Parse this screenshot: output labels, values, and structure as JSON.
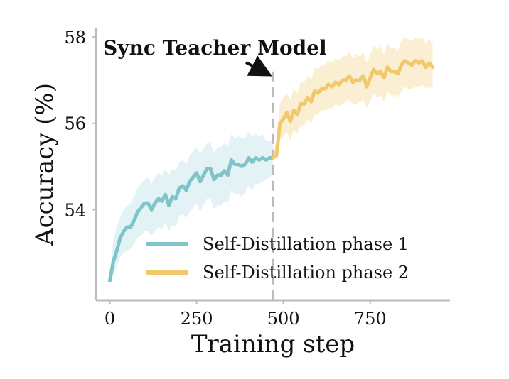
{
  "chart_data": {
    "type": "line",
    "title": "",
    "xlabel": "Training step",
    "ylabel": "Accuracy (%)",
    "xlim": [
      -40,
      980
    ],
    "ylim": [
      51.9,
      58.2
    ],
    "xticks": [
      0,
      250,
      500,
      750
    ],
    "yticks": [
      54,
      56,
      58
    ],
    "grid": false,
    "legend_position": "lower-right",
    "annotation": {
      "text": "Sync Teacher Model",
      "arrow_to": [
        470,
        57.2
      ]
    },
    "sync_line_x": 470,
    "colors": {
      "phase1": "#7fc4cb",
      "phase2": "#f0c96a",
      "sync_line": "#bbbbbb",
      "axis": "#bbbbbb"
    },
    "series": [
      {
        "name": "Self-Distillation phase 1",
        "x": [
          0,
          10,
          20,
          30,
          40,
          50,
          60,
          70,
          80,
          90,
          100,
          110,
          120,
          130,
          140,
          150,
          160,
          170,
          180,
          190,
          200,
          210,
          220,
          230,
          240,
          250,
          260,
          270,
          280,
          290,
          300,
          310,
          320,
          330,
          340,
          350,
          360,
          370,
          380,
          390,
          400,
          410,
          420,
          430,
          440,
          450,
          460,
          470
        ],
        "values": [
          52.35,
          52.8,
          53.05,
          53.35,
          53.5,
          53.6,
          53.6,
          53.75,
          53.95,
          54.05,
          54.15,
          54.15,
          54.0,
          54.15,
          54.25,
          54.2,
          54.35,
          54.1,
          54.3,
          54.25,
          54.5,
          54.55,
          54.45,
          54.65,
          54.75,
          54.85,
          54.65,
          54.8,
          54.95,
          54.95,
          54.7,
          54.8,
          54.8,
          54.9,
          54.8,
          55.15,
          55.05,
          55.05,
          55.0,
          55.05,
          55.2,
          55.1,
          55.2,
          55.15,
          55.2,
          55.15,
          55.2,
          55.2
        ],
        "lower": [
          52.3,
          52.5,
          52.7,
          52.9,
          53.0,
          53.05,
          53.1,
          53.2,
          53.35,
          53.4,
          53.5,
          53.5,
          53.4,
          53.5,
          53.6,
          53.55,
          53.7,
          53.5,
          53.65,
          53.6,
          53.85,
          53.9,
          53.8,
          53.95,
          54.05,
          54.15,
          53.95,
          54.1,
          54.25,
          54.25,
          54.0,
          54.1,
          54.1,
          54.2,
          54.15,
          54.45,
          54.35,
          54.35,
          54.3,
          54.4,
          54.55,
          54.45,
          54.6,
          54.6,
          54.65,
          54.7,
          54.75,
          54.8
        ],
        "upper": [
          52.4,
          53.3,
          53.6,
          53.85,
          54.0,
          54.1,
          54.15,
          54.3,
          54.5,
          54.6,
          54.7,
          54.75,
          54.6,
          54.75,
          54.85,
          54.8,
          54.95,
          54.8,
          54.95,
          54.9,
          55.1,
          55.15,
          55.05,
          55.25,
          55.35,
          55.45,
          55.3,
          55.4,
          55.55,
          55.55,
          55.3,
          55.45,
          55.45,
          55.55,
          55.45,
          55.75,
          55.65,
          55.7,
          55.65,
          55.65,
          55.8,
          55.7,
          55.75,
          55.7,
          55.75,
          55.6,
          55.6,
          55.6
        ]
      },
      {
        "name": "Self-Distillation phase 2",
        "x": [
          470,
          480,
          490,
          500,
          510,
          520,
          530,
          540,
          550,
          560,
          570,
          580,
          590,
          600,
          610,
          620,
          630,
          640,
          650,
          660,
          670,
          680,
          690,
          700,
          710,
          720,
          730,
          740,
          750,
          760,
          770,
          780,
          790,
          800,
          810,
          820,
          830,
          840,
          850,
          860,
          870,
          880,
          890,
          900,
          910,
          920,
          930
        ],
        "values": [
          55.2,
          55.25,
          56.0,
          56.1,
          56.25,
          56.05,
          56.3,
          56.2,
          56.45,
          56.45,
          56.6,
          56.5,
          56.75,
          56.7,
          56.8,
          56.8,
          56.9,
          56.85,
          56.95,
          56.9,
          57.0,
          57.0,
          57.1,
          56.95,
          57.0,
          57.0,
          57.1,
          56.85,
          57.05,
          57.25,
          57.15,
          57.2,
          57.05,
          57.3,
          57.2,
          57.2,
          57.15,
          57.35,
          57.45,
          57.4,
          57.35,
          57.45,
          57.4,
          57.45,
          57.3,
          57.4,
          57.3
        ],
        "lower": [
          55.2,
          55.2,
          55.6,
          55.7,
          55.8,
          55.6,
          55.85,
          55.75,
          55.95,
          55.95,
          56.1,
          56.0,
          56.2,
          56.2,
          56.3,
          56.3,
          56.35,
          56.35,
          56.45,
          56.4,
          56.45,
          56.5,
          56.55,
          56.45,
          56.45,
          56.5,
          56.55,
          56.35,
          56.5,
          56.7,
          56.6,
          56.65,
          56.5,
          56.75,
          56.65,
          56.65,
          56.6,
          56.75,
          56.85,
          56.8,
          56.8,
          56.85,
          56.85,
          56.9,
          56.8,
          56.85,
          56.8
        ],
        "upper": [
          55.3,
          55.6,
          56.45,
          56.6,
          56.7,
          56.55,
          56.8,
          56.7,
          56.95,
          56.95,
          57.1,
          57.0,
          57.3,
          57.25,
          57.35,
          57.35,
          57.45,
          57.4,
          57.5,
          57.45,
          57.55,
          57.55,
          57.65,
          57.5,
          57.6,
          57.55,
          57.65,
          57.4,
          57.6,
          57.8,
          57.7,
          57.8,
          57.6,
          57.85,
          57.75,
          57.75,
          57.7,
          57.9,
          58.0,
          57.95,
          57.9,
          58.0,
          57.95,
          58.0,
          57.85,
          57.95,
          57.85
        ]
      }
    ]
  }
}
